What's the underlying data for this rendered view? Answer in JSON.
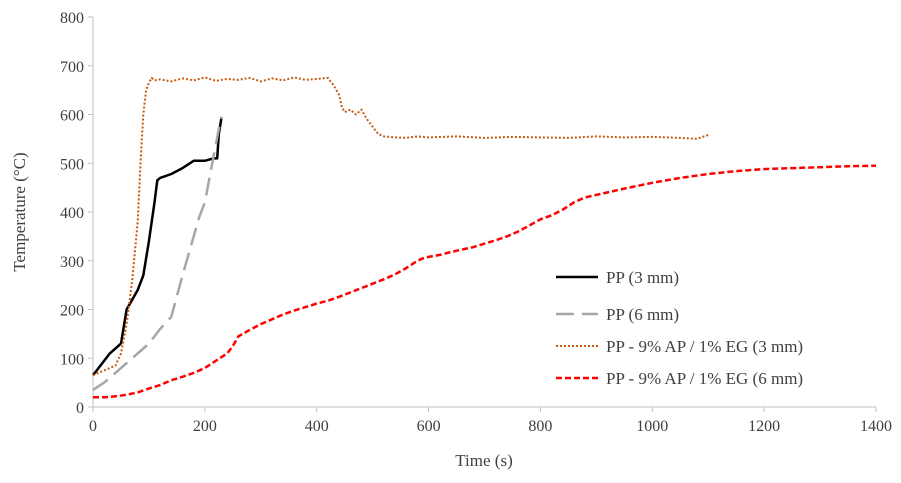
{
  "chart_data": {
    "type": "line",
    "title": "",
    "xlabel": "Time (s)",
    "ylabel": "Temperature (°C)",
    "xlim": [
      0,
      1400
    ],
    "ylim": [
      0,
      800
    ],
    "xticks": [
      0,
      200,
      400,
      600,
      800,
      1000,
      1200,
      1400
    ],
    "yticks": [
      0,
      100,
      200,
      300,
      400,
      500,
      600,
      700,
      800
    ],
    "grid": false,
    "legend_position": "bottom-right",
    "series": [
      {
        "name": "PP (3 mm)",
        "color": "#000000",
        "style": "solid",
        "x": [
          0,
          10,
          20,
          30,
          40,
          50,
          55,
          60,
          70,
          80,
          90,
          100,
          110,
          115,
          120,
          140,
          160,
          180,
          200,
          215,
          222,
          225,
          230
        ],
        "y": [
          65,
          80,
          95,
          110,
          120,
          130,
          165,
          200,
          220,
          240,
          270,
          340,
          420,
          465,
          470,
          478,
          490,
          505,
          505,
          510,
          510,
          560,
          595
        ]
      },
      {
        "name": "PP (6 mm)",
        "color": "#a6a6a6",
        "style": "dashed",
        "x": [
          0,
          20,
          40,
          60,
          80,
          100,
          120,
          140,
          160,
          180,
          190,
          200,
          210,
          220,
          225,
          230
        ],
        "y": [
          35,
          50,
          70,
          90,
          110,
          130,
          160,
          185,
          270,
          350,
          390,
          420,
          480,
          540,
          570,
          595
        ]
      },
      {
        "name": "PP - 9% AP / 1% EG (3 mm)",
        "color": "#c55a11",
        "style": "dotted",
        "x": [
          0,
          20,
          40,
          50,
          60,
          70,
          80,
          85,
          90,
          95,
          100,
          105,
          110,
          120,
          140,
          160,
          180,
          200,
          220,
          240,
          260,
          280,
          300,
          320,
          340,
          360,
          380,
          400,
          420,
          430,
          440,
          445,
          450,
          460,
          470,
          480,
          490,
          500,
          510,
          520,
          540,
          560,
          580,
          600,
          650,
          700,
          750,
          800,
          850,
          900,
          950,
          1000,
          1050,
          1080,
          1100
        ],
        "y": [
          65,
          75,
          85,
          110,
          170,
          260,
          380,
          500,
          600,
          650,
          665,
          675,
          670,
          672,
          668,
          674,
          670,
          676,
          669,
          673,
          671,
          675,
          668,
          674,
          670,
          676,
          671,
          673,
          675,
          660,
          640,
          615,
          605,
          610,
          600,
          610,
          590,
          575,
          560,
          555,
          553,
          552,
          555,
          553,
          555,
          552,
          554,
          553,
          552,
          555,
          553,
          554,
          552,
          550,
          558
        ]
      },
      {
        "name": "PP - 9% AP / 1% EG (6 mm)",
        "color": "#ff0000",
        "style": "dashed",
        "x": [
          0,
          20,
          40,
          60,
          80,
          100,
          120,
          140,
          160,
          180,
          200,
          220,
          240,
          250,
          260,
          280,
          300,
          320,
          340,
          360,
          380,
          400,
          420,
          440,
          460,
          480,
          500,
          520,
          540,
          560,
          580,
          590,
          600,
          620,
          640,
          660,
          680,
          700,
          720,
          740,
          760,
          780,
          800,
          820,
          840,
          860,
          880,
          900,
          950,
          1000,
          1050,
          1100,
          1150,
          1200,
          1250,
          1300,
          1350,
          1400
        ],
        "y": [
          20,
          20,
          22,
          25,
          30,
          38,
          45,
          55,
          62,
          70,
          80,
          95,
          110,
          125,
          145,
          158,
          170,
          180,
          190,
          198,
          205,
          212,
          218,
          226,
          235,
          244,
          253,
          262,
          272,
          285,
          300,
          305,
          308,
          312,
          318,
          323,
          328,
          335,
          342,
          350,
          360,
          372,
          385,
          393,
          405,
          420,
          430,
          435,
          448,
          460,
          470,
          478,
          484,
          488,
          490,
          492,
          494,
          495
        ]
      }
    ]
  }
}
